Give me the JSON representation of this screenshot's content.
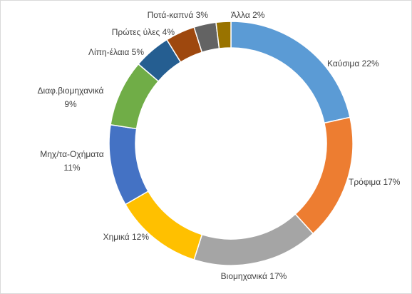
{
  "chart_data": {
    "type": "pie",
    "variant": "doughnut",
    "title": "",
    "legend": "none",
    "slices": [
      {
        "label": "Καύσιμα",
        "value": 22,
        "text": "Καύσιμα 22%",
        "color": "#5B9BD5"
      },
      {
        "label": "Τρόφιμα",
        "value": 17,
        "text": "Τρόφιμα 17%",
        "color": "#ED7D31"
      },
      {
        "label": "Βιομηχανικά",
        "value": 17,
        "text": "Βιομηχανικά 17%",
        "color": "#A5A5A5"
      },
      {
        "label": "Χημικά",
        "value": 12,
        "text": "Χημικά 12%",
        "color": "#FFC000"
      },
      {
        "label": "Μηχ/τα-Οχήματα",
        "value": 11,
        "text": [
          "Μηχ/τα-Οχήματα",
          "11%"
        ],
        "color": "#4472C4"
      },
      {
        "label": "Διαφ.βιομηχανικά",
        "value": 9,
        "text": [
          "Διαφ.βιομηχανικά",
          "9%"
        ],
        "color": "#70AD47"
      },
      {
        "label": "Λίπη-έλαια",
        "value": 5,
        "text": "Λίπη-έλαια 5%",
        "color": "#255E91"
      },
      {
        "label": "Πρώτες ύλες",
        "value": 4,
        "text": "Πρώτες ύλες 4%",
        "color": "#9E480E"
      },
      {
        "label": "Ποτά-καπνά",
        "value": 3,
        "text": "Ποτά-καπνά 3%",
        "color": "#636363"
      },
      {
        "label": "Άλλα",
        "value": 2,
        "text": "Άλλα 2%",
        "color": "#997300"
      }
    ]
  }
}
